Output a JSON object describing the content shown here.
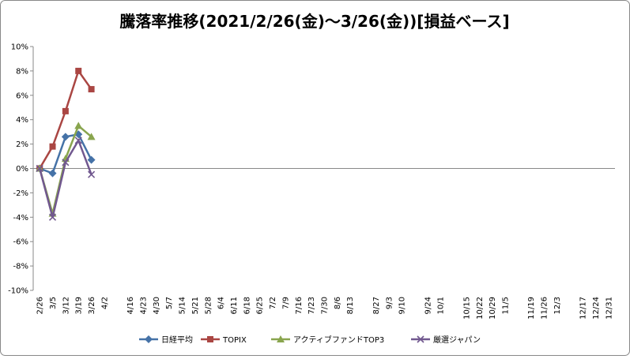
{
  "chart_data": {
    "type": "line",
    "title": "騰落率推移(2021/2/26(金)～3/26(金))[損益ベース]",
    "categories": [
      "2/26",
      "3/5",
      "3/12",
      "3/19",
      "3/26",
      "4/2",
      null,
      "4/16",
      "4/23",
      "4/30",
      "5/7",
      "5/14",
      "5/21",
      "5/28",
      "6/4",
      "6/11",
      "6/18",
      "6/25",
      "7/2",
      "7/9",
      "7/16",
      "7/23",
      "7/30",
      "8/6",
      "8/13",
      null,
      "8/27",
      "9/3",
      "9/10",
      null,
      "9/24",
      "10/1",
      null,
      "10/15",
      "10/22",
      "10/29",
      "11/5",
      null,
      "11/19",
      "11/26",
      "12/3",
      null,
      "12/17",
      "12/24",
      "12/31"
    ],
    "series": [
      {
        "name": "日経平均",
        "color": "#4572a7",
        "marker": "diamond",
        "values": [
          0,
          -0.4,
          2.6,
          2.8,
          0.7,
          null,
          null,
          null,
          null,
          null,
          null,
          null,
          null,
          null,
          null,
          null,
          null,
          null,
          null,
          null,
          null,
          null,
          null,
          null,
          null,
          null,
          null,
          null,
          null,
          null,
          null,
          null,
          null,
          null,
          null,
          null,
          null,
          null,
          null,
          null,
          null,
          null,
          null,
          null,
          null
        ]
      },
      {
        "name": "TOPIX",
        "color": "#aa4643",
        "marker": "square",
        "values": [
          0,
          1.8,
          4.7,
          8.0,
          6.5,
          null,
          null,
          null,
          null,
          null,
          null,
          null,
          null,
          null,
          null,
          null,
          null,
          null,
          null,
          null,
          null,
          null,
          null,
          null,
          null,
          null,
          null,
          null,
          null,
          null,
          null,
          null,
          null,
          null,
          null,
          null,
          null,
          null,
          null,
          null,
          null,
          null,
          null,
          null,
          null
        ]
      },
      {
        "name": "アクティブファンドTOP3",
        "color": "#89a54e",
        "marker": "triangle",
        "values": [
          0,
          -3.7,
          0.8,
          3.5,
          2.6,
          null,
          null,
          null,
          null,
          null,
          null,
          null,
          null,
          null,
          null,
          null,
          null,
          null,
          null,
          null,
          null,
          null,
          null,
          null,
          null,
          null,
          null,
          null,
          null,
          null,
          null,
          null,
          null,
          null,
          null,
          null,
          null,
          null,
          null,
          null,
          null,
          null,
          null,
          null,
          null
        ]
      },
      {
        "name": "厳選ジャパン",
        "color": "#71588f",
        "marker": "x",
        "values": [
          0,
          -4.0,
          0.5,
          2.3,
          -0.5,
          null,
          null,
          null,
          null,
          null,
          null,
          null,
          null,
          null,
          null,
          null,
          null,
          null,
          null,
          null,
          null,
          null,
          null,
          null,
          null,
          null,
          null,
          null,
          null,
          null,
          null,
          null,
          null,
          null,
          null,
          null,
          null,
          null,
          null,
          null,
          null,
          null,
          null,
          null,
          null
        ]
      }
    ],
    "ylim": [
      -10,
      10
    ],
    "yticks": [
      {
        "value": -10,
        "label": "-10%"
      },
      {
        "value": -8,
        "label": "-8%"
      },
      {
        "value": -6,
        "label": "-6%"
      },
      {
        "value": -4,
        "label": "-4%"
      },
      {
        "value": -2,
        "label": "-2%"
      },
      {
        "value": 0,
        "label": "0%"
      },
      {
        "value": 2,
        "label": "2%"
      },
      {
        "value": 4,
        "label": "4%"
      },
      {
        "value": 6,
        "label": "6%"
      },
      {
        "value": 8,
        "label": "8%"
      },
      {
        "value": 10,
        "label": "10%"
      }
    ],
    "grid": false,
    "legend": "bottom"
  }
}
